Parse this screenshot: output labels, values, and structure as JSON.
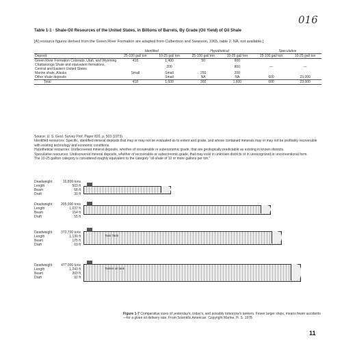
{
  "page_number_top": "016",
  "table": {
    "title": "Table 1-1 · Shale-Oil Resources of the United States, in Billions of Barrels, By Grade (Oil Yield) of Oil Shale",
    "lede": "[A] resource figures derived from the Green River Formation are adapted from Culbertson and Swanson, 1965, table 2. NA, not available.]",
    "groups": [
      "Identified",
      "Hypothetical",
      "Speculative"
    ],
    "col_headers": [
      "Deposit",
      "25-100 gal/ ton",
      "10-25 gal/ ton",
      "25-100 gal/ ton",
      "10-25 gal/ ton",
      "25-100 gal/ ton",
      "10-25 gal/ ton"
    ],
    "rows": [
      {
        "deposit": "Green River Formation Colorado, Utah, and Wyoming",
        "values": [
          "418",
          "1,400",
          "50",
          "600",
          "",
          ""
        ]
      },
      {
        "deposit": "Chattanooga Shale and equivalent formations, Central and Eastern United States",
        "values": [
          "",
          "200",
          "",
          "800",
          "—",
          "—"
        ]
      },
      {
        "deposit": "Marine shale, Alaska",
        "values": [
          "Small",
          "Small",
          "250",
          "200",
          "",
          ""
        ]
      },
      {
        "deposit": "Other shale deposits",
        "values": [
          "",
          "Small",
          "NA",
          "NA",
          "600",
          "23,000"
        ]
      },
      {
        "deposit": "Total",
        "values": [
          "418",
          "1,600",
          "300",
          "1,600",
          "600",
          "23,000"
        ]
      }
    ],
    "notes": [
      "Source: U. S. Geol. Survey Prof. Paper 820, p. 503 (1973).",
      "Identified resources: Specific, identified mineral deposits that may or may not be evaluated as to extent and grade, and whose contained minerals may or may not be profitably recoverable with existing technology and economic conditions.",
      "Hypothetical resources: Undiscovered mineral deposits, whether of recoverable or subeconomic grade, that are geologically predictable as existing in known districts.",
      "Speculative resources: Undiscovered mineral deposits, whether of recoverable or subeconomic grade, that may exist in unknown districts or in unrecognized or unconventional form.",
      "The 10-25 gal/ton category is considered roughly equivalent to the category \"oil-shale of 10 or more gallons per ton.\""
    ]
  },
  "ships": [
    {
      "stats": [
        [
          "Deadweight",
          "16,800 tons"
        ],
        [
          "Length",
          "503 ft"
        ],
        [
          "Beam",
          "68 ft"
        ],
        [
          "Draft",
          "30 ft"
        ]
      ],
      "label": ""
    },
    {
      "stats": [
        [
          "Deadweight",
          "205,000 tons"
        ],
        [
          "Length",
          "1,037 ft"
        ],
        [
          "Beam",
          "154 ft"
        ],
        [
          "Draft",
          "55 ft"
        ]
      ],
      "label": ""
    },
    {
      "stats": [
        [
          "Deadweight",
          "372,700 tons"
        ],
        [
          "Length",
          "1,130 ft"
        ],
        [
          "Beam",
          "175 ft"
        ],
        [
          "Draft",
          "69 ft"
        ]
      ],
      "label": "Tank Tank"
    },
    {
      "stats": [
        [
          "Deadweight",
          "477,000 tons"
        ],
        [
          "Length",
          "1,243 ft"
        ],
        [
          "Beam",
          "203 ft"
        ],
        [
          "Draft",
          "92 ft"
        ]
      ],
      "label": "Tanker oil tank"
    }
  ],
  "caption": {
    "label": "Figure 1-7",
    "text": "Comparative sizes of yesterday's, today's, and possibly tomorrow's tankers. Fewer larger ships, means fewer accidents—for a given oil delivery rate. From Scientific American. Copyright Marine, H. S. 1978."
  },
  "page_number_bottom": "11",
  "colors": {
    "ink": "#222222",
    "hull": "#d9d9d9",
    "paper": "#ffffff"
  }
}
